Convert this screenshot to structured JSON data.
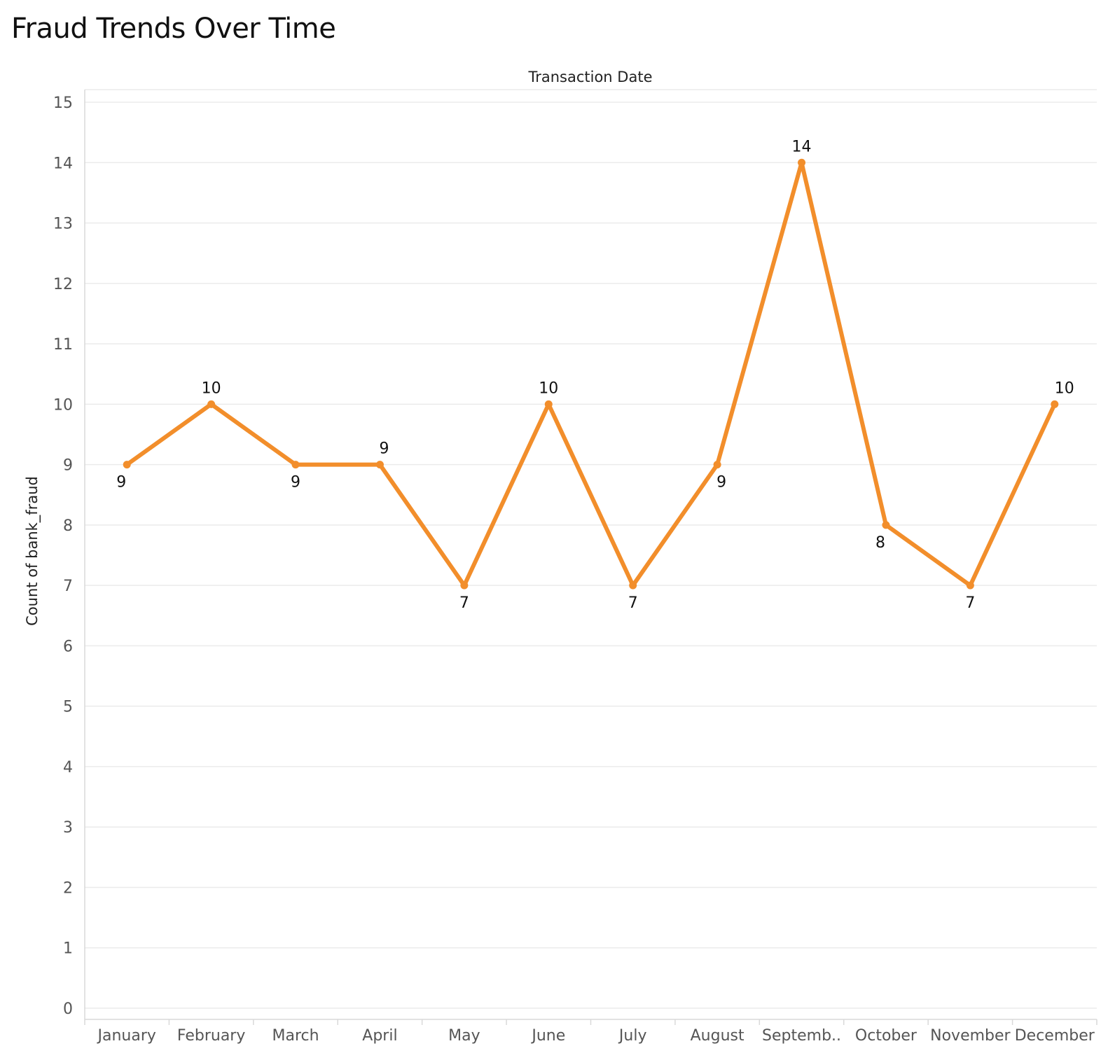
{
  "chart_data": {
    "type": "line",
    "title": "Fraud Trends Over Time",
    "xlabel": "Transaction Date",
    "ylabel": "Count of bank_fraud",
    "categories": [
      "January",
      "February",
      "March",
      "April",
      "May",
      "June",
      "July",
      "August",
      "Septemb..",
      "October",
      "November",
      "December"
    ],
    "values": [
      9,
      10,
      9,
      9,
      7,
      10,
      7,
      9,
      14,
      8,
      7,
      10
    ],
    "label_positions": [
      "below",
      "above",
      "below",
      "above",
      "below",
      "above",
      "below",
      "below",
      "above",
      "below",
      "below",
      "above"
    ],
    "ylim": [
      0,
      15
    ],
    "yticks": [
      0,
      1,
      2,
      3,
      4,
      5,
      6,
      7,
      8,
      9,
      10,
      11,
      12,
      13,
      14,
      15
    ],
    "grid": true,
    "legend": "none",
    "colors": {
      "line": "#F28E2B",
      "grid": "#EBEBEB",
      "axis": "#D9D9D9"
    }
  }
}
